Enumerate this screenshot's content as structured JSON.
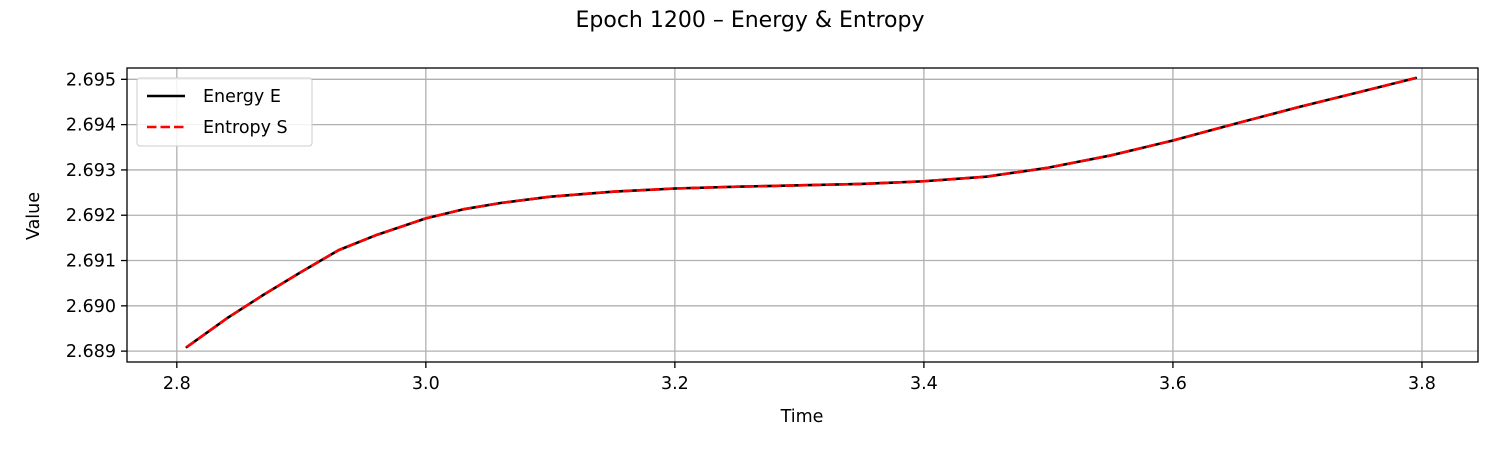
{
  "chart_data": {
    "type": "line",
    "title": "Epoch 1200 – Energy & Entropy",
    "xlabel": "Time",
    "ylabel": "Value",
    "xlim": [
      2.76,
      3.845
    ],
    "ylim": [
      2.68876,
      2.69525
    ],
    "xticks": [
      2.8,
      3.0,
      3.2,
      3.4,
      3.6,
      3.8
    ],
    "xtick_labels": [
      "2.8",
      "3.0",
      "3.2",
      "3.4",
      "3.6",
      "3.8"
    ],
    "yticks": [
      2.689,
      2.69,
      2.691,
      2.692,
      2.693,
      2.694,
      2.695
    ],
    "ytick_labels": [
      "2.689",
      "2.690",
      "2.691",
      "2.692",
      "2.693",
      "2.694",
      "2.695"
    ],
    "grid": true,
    "legend_position": "upper-left",
    "x": [
      2.808,
      2.84,
      2.87,
      2.9,
      2.93,
      2.96,
      3.0,
      3.03,
      3.06,
      3.1,
      3.15,
      3.2,
      3.25,
      3.3,
      3.35,
      3.4,
      3.45,
      3.5,
      3.55,
      3.6,
      3.65,
      3.7,
      3.75,
      3.795
    ],
    "series": [
      {
        "name": "Energy E",
        "color": "#000000",
        "style": "solid",
        "values": [
          2.68909,
          2.68972,
          2.69025,
          2.69075,
          2.69123,
          2.69156,
          2.69193,
          2.69213,
          2.69227,
          2.69241,
          2.69252,
          2.69259,
          2.69263,
          2.69266,
          2.69269,
          2.69275,
          2.69285,
          2.69305,
          2.69332,
          2.69365,
          2.69402,
          2.69438,
          2.69472,
          2.69503
        ]
      },
      {
        "name": "Entropy S",
        "color": "#ff0000",
        "style": "dashed",
        "values": [
          2.68909,
          2.68972,
          2.69025,
          2.69075,
          2.69123,
          2.69156,
          2.69193,
          2.69213,
          2.69227,
          2.69241,
          2.69252,
          2.69259,
          2.69263,
          2.69266,
          2.69269,
          2.69275,
          2.69285,
          2.69305,
          2.69332,
          2.69365,
          2.69402,
          2.69438,
          2.69472,
          2.69503
        ]
      }
    ]
  }
}
